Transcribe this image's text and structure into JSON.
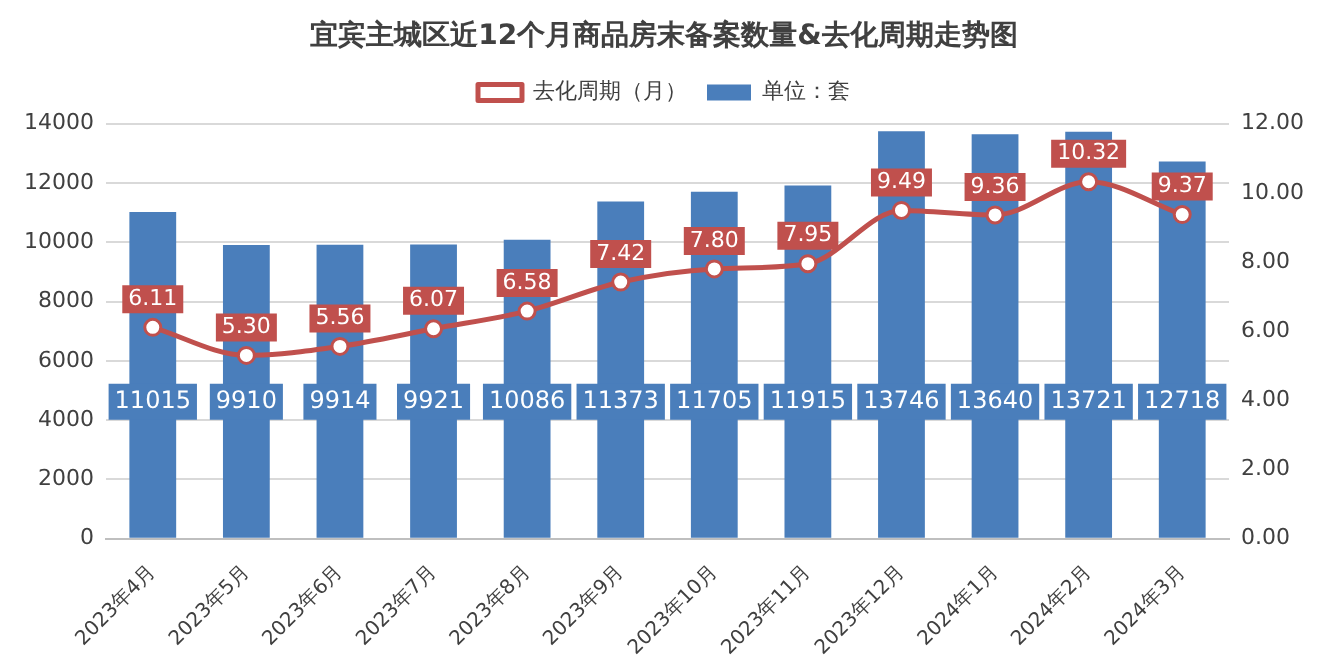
{
  "chart_data": {
    "type": "bar",
    "title": "宜宾主城区近12个月商品房末备案数量&去化周期走势图",
    "categories": [
      "2023年4月",
      "2023年5月",
      "2023年6月",
      "2023年7月",
      "2023年8月",
      "2023年9月",
      "2023年10月",
      "2023年11月",
      "2023年12月",
      "2024年1月",
      "2024年2月",
      "2024年3月"
    ],
    "series": [
      {
        "name": "单位：套",
        "color": "#4a7ebb",
        "values": [
          11015,
          9910,
          9914,
          9921,
          10086,
          11373,
          11705,
          11915,
          13746,
          13640,
          13721,
          12718
        ]
      },
      {
        "name": "去化周期（月）",
        "type": "line",
        "axis": "y2",
        "color": "#c0504d",
        "marker": "circle",
        "values": [
          6.11,
          5.3,
          5.56,
          6.07,
          6.58,
          7.42,
          7.8,
          7.95,
          9.49,
          9.36,
          10.32,
          9.37
        ],
        "value_labels": [
          "6.11",
          "5.30",
          "5.56",
          "6.07",
          "6.58",
          "7.42",
          "7.80",
          "7.95",
          "9.49",
          "9.36",
          "10.32",
          "9.37"
        ]
      }
    ],
    "ylim": [
      0,
      14000
    ],
    "yticks": [
      0,
      2000,
      4000,
      6000,
      8000,
      10000,
      12000,
      14000
    ],
    "y2lim": [
      0,
      12
    ],
    "y2ticks": [
      {
        "value": 0,
        "label": "0.00"
      },
      {
        "value": 2,
        "label": "2.00"
      },
      {
        "value": 4,
        "label": "4.00"
      },
      {
        "value": 6,
        "label": "6.00"
      },
      {
        "value": 8,
        "label": "8.00"
      },
      {
        "value": 10,
        "label": "10.00"
      },
      {
        "value": 12,
        "label": "12.00"
      }
    ],
    "grid": "y",
    "legend": "top",
    "data_labels": true
  }
}
